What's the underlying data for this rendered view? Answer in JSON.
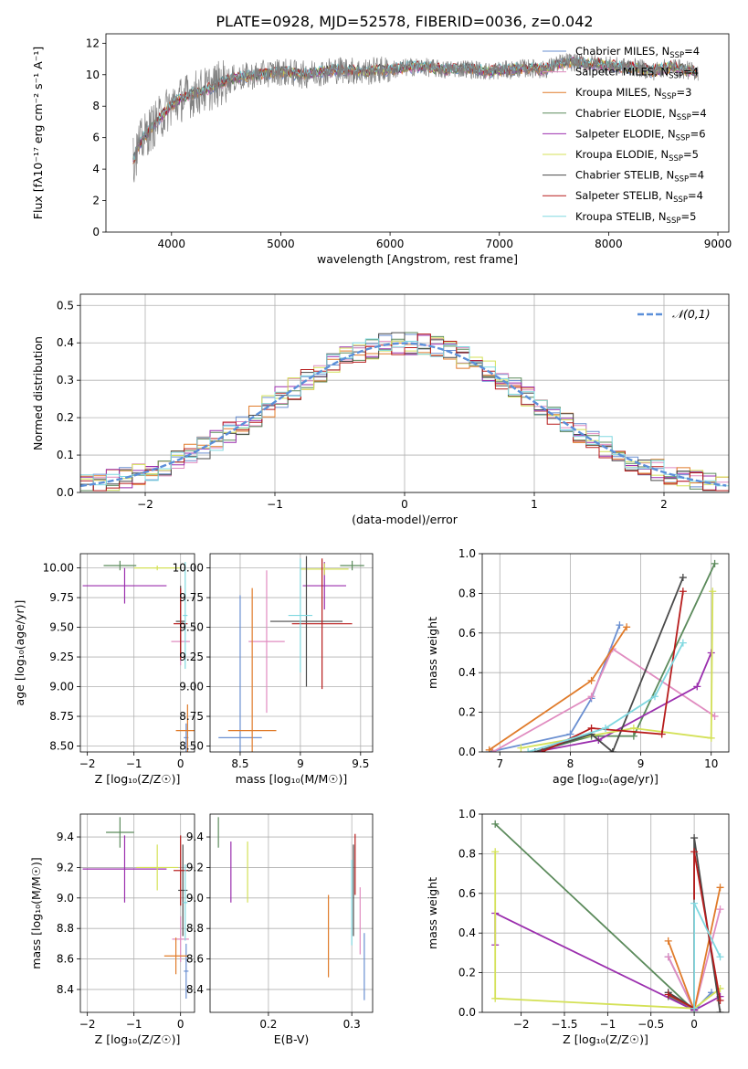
{
  "figure_title": "PLATE=0928, MJD=52578, FIBERID=0036, z=0.042",
  "chart_data": [
    {
      "id": "spectrum",
      "type": "line",
      "xlabel": "wavelength [Angstrom, rest frame]",
      "ylabel": "Flux [fλ10⁻¹⁷ erg cm⁻² s⁻¹ A⁻¹]",
      "xlim": [
        3400,
        9100
      ],
      "ylim": [
        0,
        12.6
      ],
      "xticks": [
        4000,
        5000,
        6000,
        7000,
        8000,
        9000
      ],
      "yticks": [
        0,
        2,
        4,
        6,
        8,
        10,
        12
      ],
      "grid": false,
      "legend_placement": "upper-right",
      "observed": {
        "color": "#808080",
        "wave": [
          3650,
          3700,
          3800,
          3900,
          4000,
          4100,
          4200,
          4300,
          4400,
          4500,
          4600,
          4700,
          4800,
          4900,
          5000,
          5100,
          5200,
          5300,
          5400,
          5500,
          5600,
          5700,
          5800,
          5900,
          6000,
          6100,
          6200,
          6300,
          6400,
          6500,
          6600,
          6700,
          6800,
          6900,
          7000,
          7100,
          7200,
          7300,
          7400,
          7500,
          7600,
          7700,
          7800,
          7900,
          8000,
          8100,
          8200,
          8300,
          8400,
          8500,
          8600,
          8700,
          8800
        ],
        "flux": [
          4.5,
          5.5,
          6.5,
          7.3,
          8.1,
          8.5,
          8.8,
          9.0,
          9.3,
          9.6,
          9.8,
          9.9,
          10.0,
          10.1,
          10.2,
          10.1,
          10.0,
          10.1,
          10.2,
          10.3,
          10.3,
          10.2,
          10.2,
          10.3,
          10.3,
          10.4,
          10.5,
          10.5,
          10.4,
          10.3,
          10.4,
          10.4,
          10.3,
          10.2,
          10.3,
          10.3,
          10.4,
          10.4,
          10.3,
          10.6,
          10.8,
          10.8,
          10.7,
          10.7,
          10.6,
          10.5,
          10.5,
          10.4,
          10.2,
          10.4,
          10.5,
          10.3,
          10.2
        ]
      },
      "series": [
        {
          "label": "Chabrier MILES, N",
          "sub": "SSP",
          "suffix": "=4",
          "color": "#6a8fd1"
        },
        {
          "label": "Salpeter MILES, N",
          "sub": "SSP",
          "suffix": "=4",
          "color": "#e08cc0"
        },
        {
          "label": "Kroupa MILES, N",
          "sub": "SSP",
          "suffix": "=3",
          "color": "#e07b2a"
        },
        {
          "label": "Chabrier ELODIE, N",
          "sub": "SSP",
          "suffix": "=4",
          "color": "#5b8a5b"
        },
        {
          "label": "Salpeter ELODIE, N",
          "sub": "SSP",
          "suffix": "=6",
          "color": "#9b2fae"
        },
        {
          "label": "Kroupa ELODIE, N",
          "sub": "SSP",
          "suffix": "=5",
          "color": "#d4e157"
        },
        {
          "label": "Chabrier STELIB, N",
          "sub": "SSP",
          "suffix": "=4",
          "color": "#4a4a4a"
        },
        {
          "label": "Salpeter STELIB, N",
          "sub": "SSP",
          "suffix": "=4",
          "color": "#b71c1c"
        },
        {
          "label": "Kroupa STELIB, N",
          "sub": "SSP",
          "suffix": "=5",
          "color": "#80d8e0"
        }
      ]
    },
    {
      "id": "residuals",
      "type": "histogram",
      "xlabel": "(data-model)/error",
      "ylabel": "Normed distribution",
      "xlim": [
        -2.5,
        2.5
      ],
      "ylim": [
        0,
        0.53
      ],
      "xticks": [
        -2,
        -1,
        0,
        1,
        2
      ],
      "yticks": [
        0.0,
        0.1,
        0.2,
        0.3,
        0.4,
        0.5
      ],
      "grid": true,
      "legend_placement": "upper-right",
      "reference_label": "𝒩(0,1)",
      "reference_color": "#5b8fd9"
    },
    {
      "id": "z_age",
      "type": "errorbar",
      "xlabel": "Z [log₁₀(Z/Z☉)]",
      "ylabel": "age  [log₁₀(age/yr)]",
      "xlim": [
        -2.15,
        0.3
      ],
      "ylim": [
        8.45,
        10.12
      ],
      "xticks": [
        -2,
        -1,
        0
      ],
      "yticks": [
        8.5,
        8.75,
        9.0,
        9.25,
        9.5,
        9.75,
        10.0
      ],
      "grid": true,
      "points": [
        {
          "x": 0.12,
          "y": 8.57,
          "xerr": 0.05,
          "yerr": 0.12,
          "color": "#6a8fd1"
        },
        {
          "x": 0.0,
          "y": 9.38,
          "xerr": 0.2,
          "yerr": 0.2,
          "color": "#e08cc0"
        },
        {
          "x": 0.15,
          "y": 8.63,
          "xerr": 0.25,
          "yerr": 0.22,
          "color": "#e07b2a"
        },
        {
          "x": -1.3,
          "y": 10.02,
          "xerr": 0.35,
          "yerr": 0.04,
          "color": "#5b8a5b"
        },
        {
          "x": -1.2,
          "y": 9.85,
          "xerr": 0.9,
          "yerr": 0.15,
          "color": "#9b2fae"
        },
        {
          "x": -0.5,
          "y": 10.0,
          "xerr": 0.5,
          "yerr": 0.02,
          "color": "#d4e157"
        },
        {
          "x": 0.0,
          "y": 9.55,
          "xerr": 0.1,
          "yerr": 0.3,
          "color": "#4a4a4a"
        },
        {
          "x": 0.0,
          "y": 9.53,
          "xerr": 0.15,
          "yerr": 0.3,
          "color": "#b71c1c"
        },
        {
          "x": 0.1,
          "y": 9.6,
          "xerr": 0.05,
          "yerr": 0.45,
          "color": "#80d8e0"
        }
      ]
    },
    {
      "id": "mass_age",
      "type": "errorbar",
      "xlabel": "mass [log₁₀(M/M☉)]",
      "ylabel": "",
      "xlim": [
        8.25,
        9.6
      ],
      "ylim": [
        8.45,
        10.12
      ],
      "xticks": [
        8.5,
        9.0,
        9.5
      ],
      "yticks": [
        8.5,
        8.75,
        9.0,
        9.25,
        9.5,
        9.75,
        10.0
      ],
      "grid": true,
      "points": [
        {
          "x": 8.5,
          "y": 8.57,
          "xerr": 0.18,
          "yerr": 1.2,
          "color": "#6a8fd1"
        },
        {
          "x": 8.72,
          "y": 9.38,
          "xerr": 0.15,
          "yerr": 0.6,
          "color": "#e08cc0"
        },
        {
          "x": 8.6,
          "y": 8.63,
          "xerr": 0.2,
          "yerr": 1.2,
          "color": "#e07b2a"
        },
        {
          "x": 9.43,
          "y": 10.02,
          "xerr": 0.1,
          "yerr": 0.04,
          "color": "#5b8a5b"
        },
        {
          "x": 9.2,
          "y": 9.85,
          "xerr": 0.18,
          "yerr": 0.2,
          "color": "#9b2fae"
        },
        {
          "x": 9.2,
          "y": 9.99,
          "xerr": 0.2,
          "yerr": 0.05,
          "color": "#d4e157"
        },
        {
          "x": 9.05,
          "y": 9.55,
          "xerr": 0.3,
          "yerr": 0.55,
          "color": "#4a4a4a"
        },
        {
          "x": 9.18,
          "y": 9.53,
          "xerr": 0.25,
          "yerr": 0.55,
          "color": "#b71c1c"
        },
        {
          "x": 9.0,
          "y": 9.6,
          "xerr": 0.1,
          "yerr": 0.48,
          "color": "#80d8e0"
        }
      ]
    },
    {
      "id": "age_weight",
      "type": "line",
      "xlabel": "age  [log₁₀(age/yr)]",
      "ylabel": "mass weight",
      "xlim": [
        6.75,
        10.25
      ],
      "ylim": [
        0,
        1.0
      ],
      "xticks": [
        7,
        8,
        9,
        10
      ],
      "yticks": [
        0.0,
        0.2,
        0.4,
        0.6,
        0.8,
        1.0
      ],
      "grid": true,
      "series": [
        {
          "color": "#6a8fd1",
          "x": [
            6.85,
            8.0,
            8.3,
            8.7
          ],
          "y": [
            0.0,
            0.09,
            0.27,
            0.64
          ]
        },
        {
          "color": "#e08cc0",
          "x": [
            6.9,
            8.3,
            8.6,
            10.05
          ],
          "y": [
            0.0,
            0.28,
            0.52,
            0.18
          ]
        },
        {
          "color": "#e07b2a",
          "x": [
            6.85,
            8.3,
            8.8
          ],
          "y": [
            0.01,
            0.36,
            0.63
          ]
        },
        {
          "color": "#5b8a5b",
          "x": [
            7.5,
            8.3,
            8.9,
            10.05
          ],
          "y": [
            0.0,
            0.08,
            0.08,
            0.95
          ]
        },
        {
          "color": "#9b2fae",
          "x": [
            7.5,
            8.4,
            9.8,
            10.0
          ],
          "y": [
            0.0,
            0.06,
            0.33,
            0.5
          ]
        },
        {
          "color": "#d4e157",
          "x": [
            7.3,
            8.9,
            10.0,
            10.02
          ],
          "y": [
            0.02,
            0.12,
            0.07,
            0.81
          ]
        },
        {
          "color": "#4a4a4a",
          "x": [
            7.5,
            8.3,
            8.6,
            9.6
          ],
          "y": [
            0.0,
            0.09,
            0.0,
            0.88
          ]
        },
        {
          "color": "#b71c1c",
          "x": [
            7.6,
            8.3,
            9.3,
            9.6
          ],
          "y": [
            0.0,
            0.12,
            0.09,
            0.81
          ]
        },
        {
          "color": "#80d8e0",
          "x": [
            7.4,
            8.5,
            9.2,
            9.6
          ],
          "y": [
            0.0,
            0.12,
            0.28,
            0.55
          ]
        }
      ]
    },
    {
      "id": "z_mass",
      "type": "errorbar",
      "xlabel": "Z [log₁₀(Z/Z☉)]",
      "ylabel": "mass [log₁₀(M/M☉)]",
      "xlim": [
        -2.15,
        0.3
      ],
      "ylim": [
        8.25,
        9.55
      ],
      "xticks": [
        -2,
        -1,
        0
      ],
      "yticks": [
        8.4,
        8.6,
        8.8,
        9.0,
        9.2,
        9.4
      ],
      "grid": true,
      "points": [
        {
          "x": 0.12,
          "y": 8.52,
          "xerr": 0.05,
          "yerr": 0.18,
          "color": "#6a8fd1"
        },
        {
          "x": 0.0,
          "y": 8.73,
          "xerr": 0.18,
          "yerr": 0.15,
          "color": "#e08cc0"
        },
        {
          "x": -0.1,
          "y": 8.62,
          "xerr": 0.25,
          "yerr": 0.12,
          "color": "#e07b2a"
        },
        {
          "x": -1.3,
          "y": 9.43,
          "xerr": 0.3,
          "yerr": 0.1,
          "color": "#5b8a5b"
        },
        {
          "x": -1.2,
          "y": 9.19,
          "xerr": 0.9,
          "yerr": 0.22,
          "color": "#9b2fae"
        },
        {
          "x": -0.5,
          "y": 9.2,
          "xerr": 0.45,
          "yerr": 0.15,
          "color": "#d4e157"
        },
        {
          "x": 0.05,
          "y": 9.05,
          "xerr": 0.1,
          "yerr": 0.3,
          "color": "#4a4a4a"
        },
        {
          "x": 0.0,
          "y": 9.18,
          "xerr": 0.15,
          "yerr": 0.23,
          "color": "#b71c1c"
        },
        {
          "x": 0.1,
          "y": 8.97,
          "xerr": 0.05,
          "yerr": 0.25,
          "color": "#80d8e0"
        }
      ]
    },
    {
      "id": "ebv_mass",
      "type": "errorbar",
      "xlabel": "E(B-V)",
      "ylabel": "",
      "xlim": [
        0.13,
        0.325
      ],
      "ylim": [
        8.25,
        9.55
      ],
      "xticks": [
        0.2,
        0.3
      ],
      "yticks": [
        8.4,
        8.6,
        8.8,
        9.0,
        9.2,
        9.4
      ],
      "grid": true,
      "points": [
        {
          "x": 0.315,
          "y": 8.55,
          "xerr": 0,
          "yerr": 0.22,
          "color": "#6a8fd1"
        },
        {
          "x": 0.31,
          "y": 8.85,
          "xerr": 0,
          "yerr": 0.22,
          "color": "#e08cc0"
        },
        {
          "x": 0.272,
          "y": 8.75,
          "xerr": 0,
          "yerr": 0.27,
          "color": "#e07b2a"
        },
        {
          "x": 0.14,
          "y": 9.43,
          "xerr": 0,
          "yerr": 0.1,
          "color": "#5b8a5b"
        },
        {
          "x": 0.155,
          "y": 9.17,
          "xerr": 0,
          "yerr": 0.2,
          "color": "#9b2fae"
        },
        {
          "x": 0.175,
          "y": 9.17,
          "xerr": 0,
          "yerr": 0.2,
          "color": "#d4e157"
        },
        {
          "x": 0.302,
          "y": 9.05,
          "xerr": 0,
          "yerr": 0.3,
          "color": "#4a4a4a"
        },
        {
          "x": 0.304,
          "y": 9.22,
          "xerr": 0,
          "yerr": 0.2,
          "color": "#b71c1c"
        },
        {
          "x": 0.3,
          "y": 8.97,
          "xerr": 0,
          "yerr": 0.28,
          "color": "#80d8e0"
        }
      ]
    },
    {
      "id": "z_weight",
      "type": "line",
      "xlabel": "Z [log₁₀(Z/Z☉)]",
      "ylabel": "mass weight",
      "xlim": [
        -2.45,
        0.4
      ],
      "ylim": [
        0,
        1.0
      ],
      "xticks": [
        -2.0,
        -1.5,
        -1.0,
        -0.5,
        0.0
      ],
      "yticks": [
        0.0,
        0.2,
        0.4,
        0.6,
        0.8,
        1.0
      ],
      "grid": true,
      "series": [
        {
          "color": "#6a8fd1",
          "x": [
            -0.3,
            0.0,
            0.2
          ],
          "y": [
            0.28,
            0.01,
            0.1
          ]
        },
        {
          "color": "#e08cc0",
          "x": [
            -0.3,
            0.0,
            0.3
          ],
          "y": [
            0.28,
            0.01,
            0.52
          ]
        },
        {
          "color": "#e07b2a",
          "x": [
            -0.3,
            0.0,
            0.3
          ],
          "y": [
            0.36,
            0.01,
            0.63
          ]
        },
        {
          "color": "#5b8a5b",
          "x": [
            -2.3,
            0.0,
            -0.3
          ],
          "y": [
            0.95,
            0.01,
            0.08
          ]
        },
        {
          "color": "#9b2fae",
          "x": [
            -2.3,
            -2.3,
            0.0,
            0.3
          ],
          "y": [
            0.34,
            0.5,
            0.01,
            0.08
          ]
        },
        {
          "color": "#d4e157",
          "x": [
            -2.3,
            -2.3,
            0.0,
            0.3
          ],
          "y": [
            0.81,
            0.07,
            0.02,
            0.12
          ]
        },
        {
          "color": "#4a4a4a",
          "x": [
            -0.3,
            0.0,
            0.0,
            0.3
          ],
          "y": [
            0.1,
            0.02,
            0.88,
            0.0
          ]
        },
        {
          "color": "#b71c1c",
          "x": [
            -0.3,
            0.0,
            0.0,
            0.3
          ],
          "y": [
            0.09,
            0.02,
            0.81,
            0.06
          ]
        },
        {
          "color": "#80d8e0",
          "x": [
            0.0,
            0.0,
            0.3
          ],
          "y": [
            0.02,
            0.55,
            0.28
          ]
        }
      ]
    }
  ]
}
